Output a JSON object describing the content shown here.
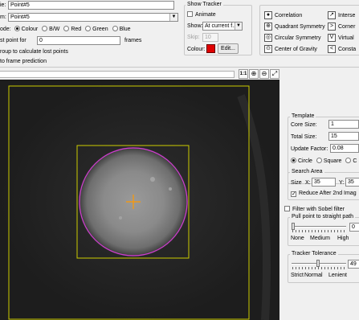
{
  "point_settings": {
    "name_label": "ie:",
    "name_value": "Point#5",
    "from_label": "m:",
    "from_value": "Point#5",
    "mode_label": "ode:",
    "mode_options": [
      "Colour",
      "B/W",
      "Red",
      "Green",
      "Blue"
    ],
    "mode_selected": "Colour",
    "lost_point_label": "st point for",
    "lost_point_value": "0",
    "lost_point_unit": "frames",
    "group_label": "roup to calculate lost points",
    "prediction_label": "to frame prediction"
  },
  "show_tracker": {
    "title": "Show Tracker",
    "animate_label": "Animate",
    "animate_checked": false,
    "show_label": "Show:",
    "show_value": "At current f...",
    "skip_label": "Skip:",
    "skip_value": "10",
    "colour_label": "Colour:",
    "colour_value": "#e00000",
    "edit_label": "Edit..."
  },
  "methods": [
    {
      "icon": "radio-selected-icon",
      "glyph": "●",
      "label": "Correlation",
      "selected": true
    },
    {
      "icon": "quadrant-symmetry-icon",
      "glyph": "⊕",
      "label": "Quadrant Symmetry",
      "selected": false
    },
    {
      "icon": "circular-symmetry-icon",
      "glyph": "◎",
      "label": "Circular Symmetry",
      "selected": false
    },
    {
      "icon": "center-gravity-icon",
      "glyph": "⊙",
      "label": "Center of Gravity",
      "selected": false
    },
    {
      "icon": "intersect-icon",
      "glyph": "↗",
      "label": "Interse"
    },
    {
      "icon": "corner-icon",
      "glyph": ">",
      "label": "Corner"
    },
    {
      "icon": "virtual-icon",
      "glyph": "V",
      "label": "Virtual"
    },
    {
      "icon": "constant-icon",
      "glyph": "<",
      "label": "Consta"
    }
  ],
  "toolbar": {
    "zoom_one": "1:1",
    "zoom_in": "⊕",
    "zoom_out": "⊖",
    "fit": "⤢"
  },
  "template": {
    "title": "Template",
    "core_size_label": "Core Size:",
    "core_size_value": "1",
    "total_size_label": "Total Size:",
    "total_size_value": "15",
    "update_factor_label": "Update Factor:",
    "update_factor_value": "0.08",
    "shape_options": [
      "Circle",
      "Square",
      "C"
    ],
    "shape_selected": "Circle"
  },
  "search_area": {
    "title": "Search Area",
    "size_label": "Size",
    "x_label": "X:",
    "x_value": "35",
    "y_label": "Y:",
    "y_value": "35",
    "reduce_label": "Reduce After 2nd Imag",
    "reduce_checked": true
  },
  "sobel": {
    "label": "Filter with Sobel filter",
    "checked": false
  },
  "pull_point": {
    "title": "Pull point to straight path",
    "value": "0",
    "level": 0,
    "scale": [
      "None",
      "Medium",
      "High"
    ]
  },
  "tolerance": {
    "title": "Tracker Tolerance",
    "value": "49",
    "level": 0.49,
    "scale": [
      "Strict",
      "Normal",
      "Lenient"
    ]
  },
  "colors": {
    "tracker_circle": "#d23ad2",
    "box": "#cccc00",
    "crosshair": "#ff9900"
  }
}
